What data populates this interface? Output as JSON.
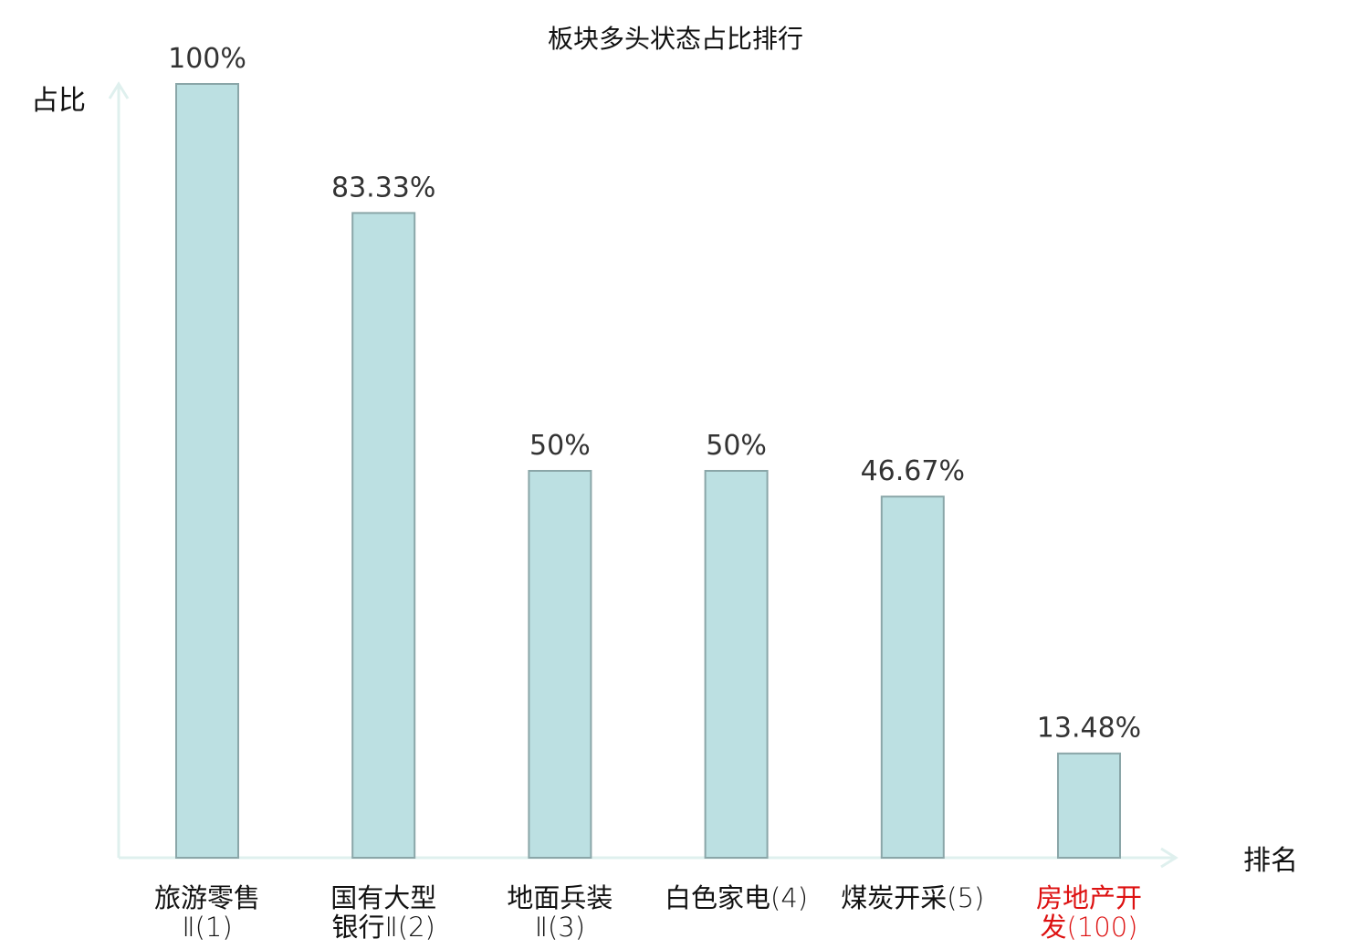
{
  "chart_data": {
    "type": "bar",
    "title": "板块多头状态占比排行",
    "xlabel": "排名",
    "ylabel": "占比",
    "ylim": [
      0,
      100
    ],
    "grid": false,
    "legend": "none",
    "categories": [
      {
        "name_lines": [
          "旅游零售"
        ],
        "rank_line": "Ⅱ(1)",
        "highlight": false
      },
      {
        "name_lines": [
          "国有大型"
        ],
        "rank_line": "银行Ⅱ(2)",
        "highlight": false
      },
      {
        "name_lines": [
          "地面兵装"
        ],
        "rank_line": "Ⅱ(3)",
        "highlight": false
      },
      {
        "name_lines": [],
        "rank_line": "白色家电(4)",
        "highlight": false
      },
      {
        "name_lines": [],
        "rank_line": "煤炭开采(5)",
        "highlight": false
      },
      {
        "name_lines": [
          "房地产开"
        ],
        "rank_line": "发(100)",
        "highlight": true
      }
    ],
    "values": [
      100,
      83.33,
      50,
      50,
      46.67,
      13.48
    ],
    "value_labels": [
      "100%",
      "83.33%",
      "50%",
      "50%",
      "46.67%",
      "13.48%"
    ],
    "colors": {
      "bar_fill": "#bce0e2",
      "bar_stroke": "#8aa6a8",
      "axis": "#dff0ee",
      "text": "#111111",
      "value_text": "#333333",
      "highlight": "#dd1111"
    }
  }
}
